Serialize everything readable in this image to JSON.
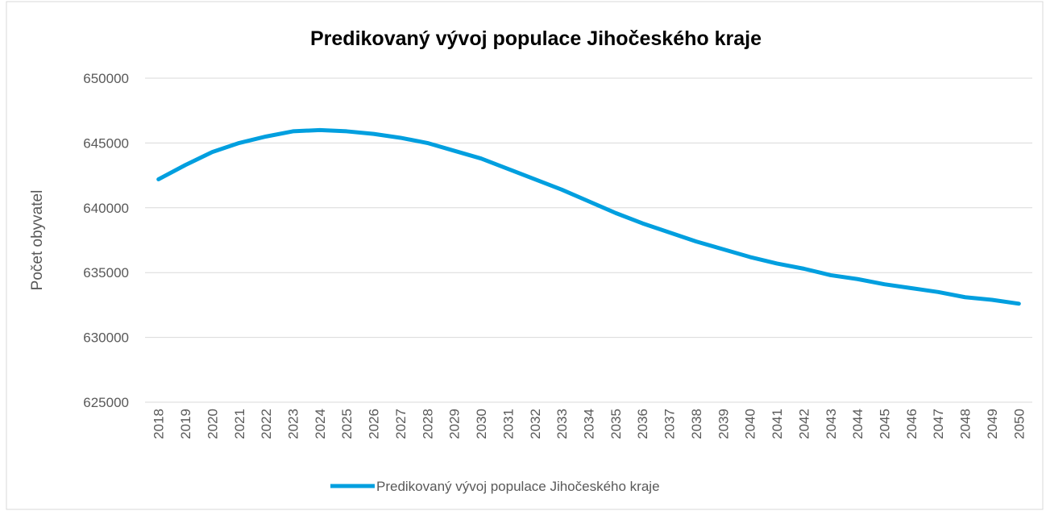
{
  "chart_data": {
    "type": "line",
    "title": "Predikovaný vývoj populace Jihočeského kraje",
    "y_label": "Počet obyvatel",
    "categories": [
      "2018",
      "2019",
      "2020",
      "2021",
      "2022",
      "2023",
      "2024",
      "2025",
      "2026",
      "2027",
      "2028",
      "2029",
      "2030",
      "2031",
      "2032",
      "2033",
      "2034",
      "2035",
      "2036",
      "2037",
      "2038",
      "2039",
      "2040",
      "2041",
      "2042",
      "2043",
      "2044",
      "2045",
      "2046",
      "2047",
      "2048",
      "2049",
      "2050"
    ],
    "series": [
      {
        "name": "Predikovaný vývoj populace Jihočeského kraje",
        "color": "#009fdf",
        "values": [
          642200,
          643300,
          644300,
          645000,
          645500,
          645900,
          646000,
          645900,
          645700,
          645400,
          645000,
          644400,
          643800,
          643000,
          642200,
          641400,
          640500,
          639600,
          638800,
          638100,
          637400,
          636800,
          636200,
          635700,
          635300,
          634800,
          634500,
          634100,
          633800,
          633500,
          633100,
          632900,
          632600
        ]
      }
    ],
    "ylim": [
      625000,
      650000
    ],
    "yticks": [
      625000,
      630000,
      635000,
      640000,
      645000,
      650000
    ],
    "grid": true,
    "legend": "bottom"
  }
}
